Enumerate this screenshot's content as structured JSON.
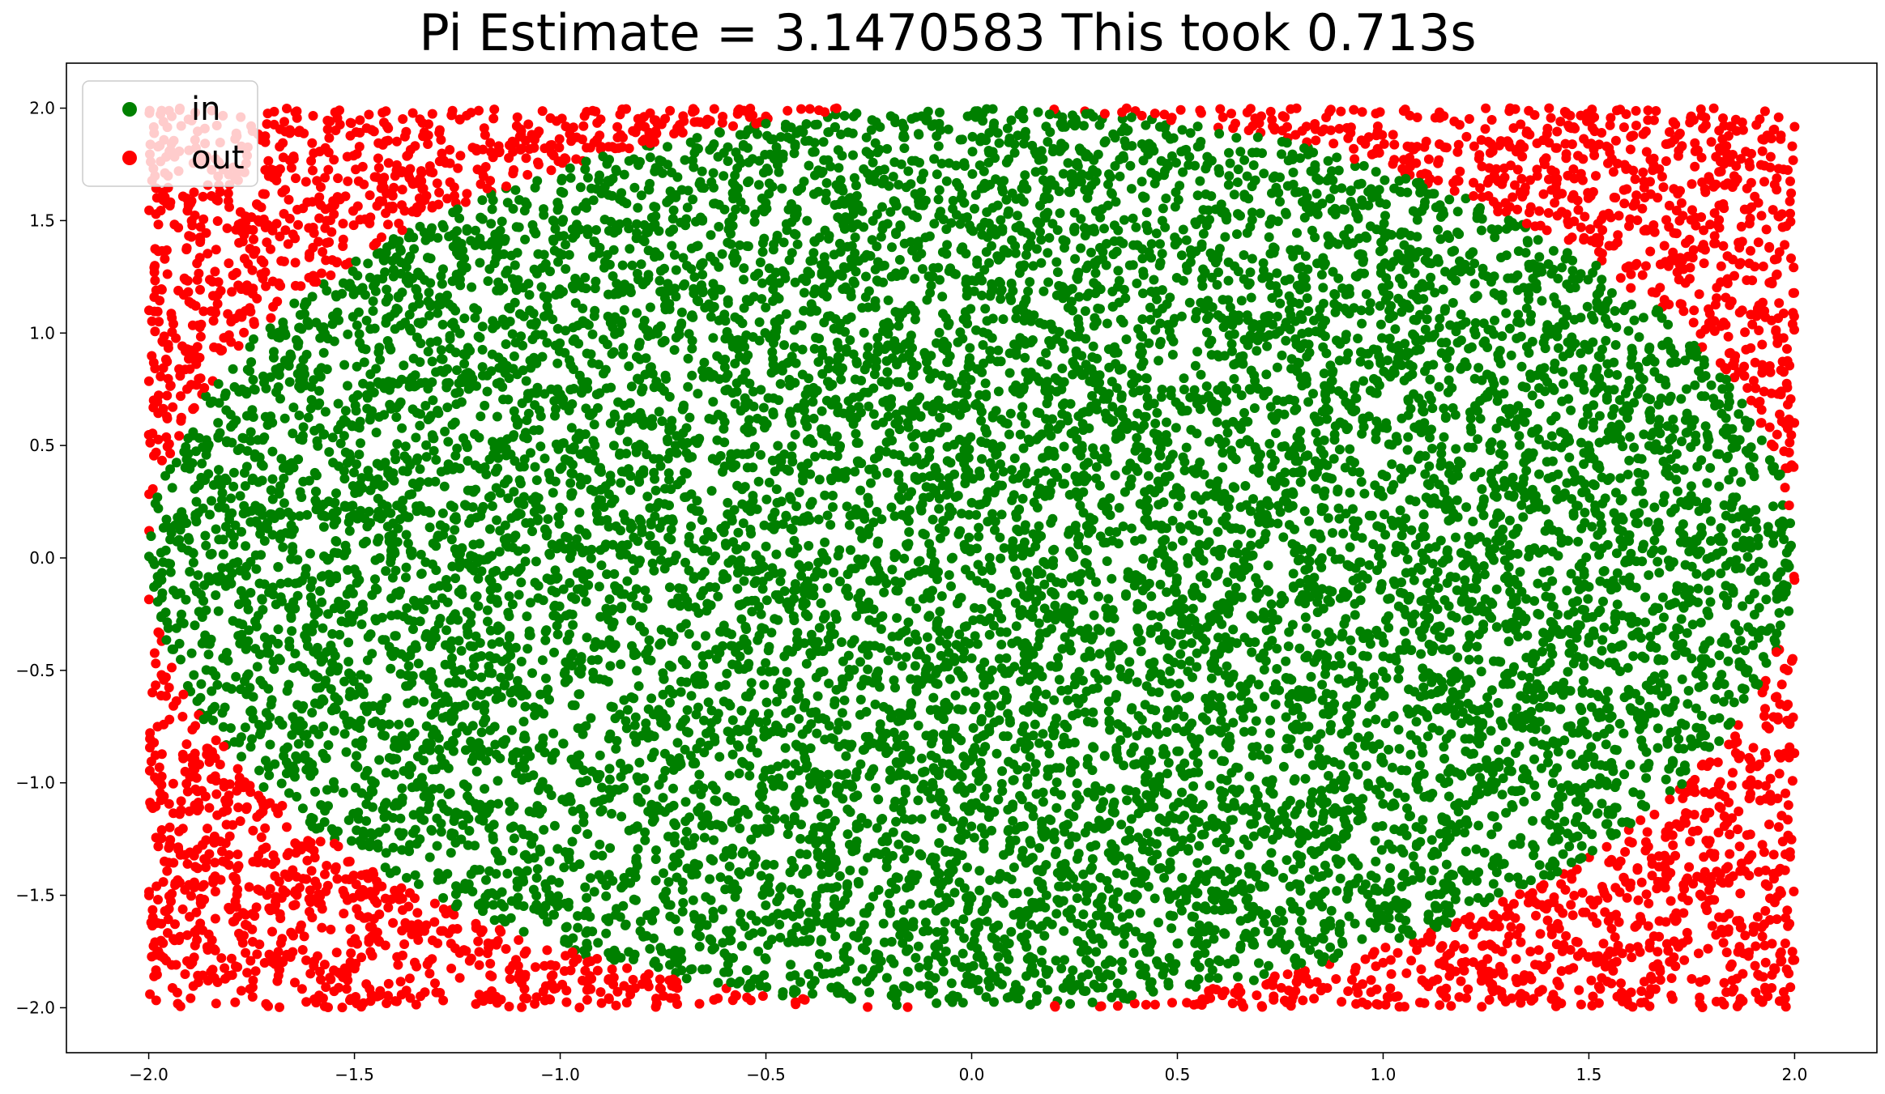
{
  "chart_data": {
    "type": "scatter",
    "title": "Pi Estimate = 3.1470583 This took 0.713s",
    "xlabel": "",
    "ylabel": "",
    "xlim": [
      -2.2,
      2.2
    ],
    "ylim": [
      -2.2,
      2.2
    ],
    "x_ticks": [
      -2.0,
      -1.5,
      -1.0,
      -0.5,
      0.0,
      0.5,
      1.0,
      1.5,
      2.0
    ],
    "y_ticks": [
      -2.0,
      -1.5,
      -1.0,
      -0.5,
      0.0,
      0.5,
      1.0,
      1.5,
      2.0
    ],
    "x_tick_labels": [
      "−2.0",
      "−1.5",
      "−1.0",
      "−0.5",
      "0.0",
      "0.5",
      "1.0",
      "1.5",
      "2.0"
    ],
    "y_tick_labels": [
      "−2.0",
      "−1.5",
      "−1.0",
      "−0.5",
      "0.0",
      "0.5",
      "1.0",
      "1.5",
      "2.0"
    ],
    "grid": false,
    "legend": {
      "placement": "upper-left"
    },
    "point_domain": {
      "x": [
        -2.0,
        2.0
      ],
      "y": [
        -2.0,
        2.0
      ]
    },
    "circle_radius": 2.0,
    "series": [
      {
        "name": "in",
        "color": "#008000",
        "rule": "inside circle of radius 2",
        "marker": "circle"
      },
      {
        "name": "out",
        "color": "#ff0000",
        "rule": "outside circle of radius 2",
        "marker": "circle"
      }
    ]
  }
}
